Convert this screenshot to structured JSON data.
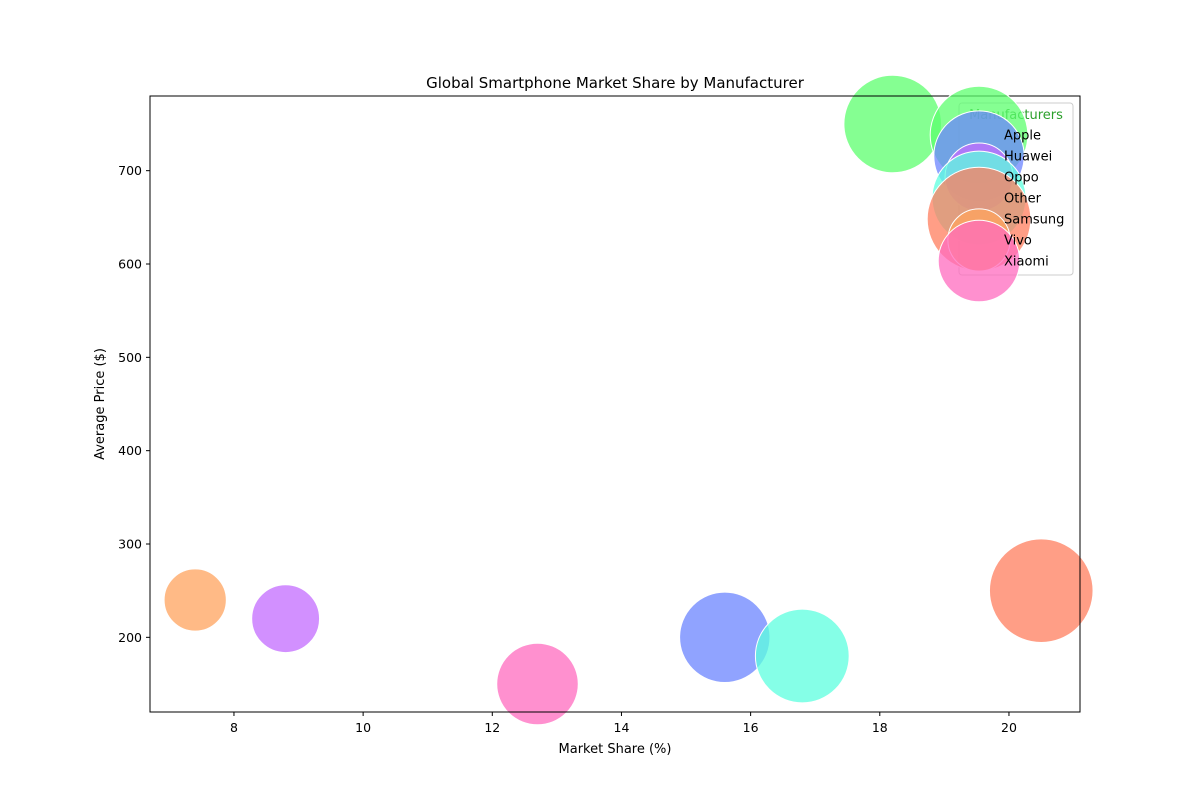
{
  "chart_data": {
    "type": "scatter",
    "title": "Global Smartphone Market Share by Manufacturer",
    "xlabel": "Market Share (%)",
    "ylabel": "Average Price ($)",
    "xlim": [
      6.7,
      21.1
    ],
    "ylim": [
      120,
      780
    ],
    "xticks": [
      8,
      10,
      12,
      14,
      16,
      18,
      20
    ],
    "yticks": [
      200,
      300,
      400,
      500,
      600,
      700
    ],
    "grid": false,
    "legend": {
      "title": "Manufacturers",
      "title_color": "#2ca02c",
      "placement": "top-right"
    },
    "series": [
      {
        "name": "Apple",
        "x": 18.2,
        "y": 750,
        "size": 18.2,
        "color": "#5cff6e"
      },
      {
        "name": "Huawei",
        "x": 15.6,
        "y": 200,
        "size": 15.6,
        "color": "#6b84ff"
      },
      {
        "name": "Oppo",
        "x": 8.8,
        "y": 220,
        "size": 8.8,
        "color": "#c36bff"
      },
      {
        "name": "Other",
        "x": 16.8,
        "y": 180,
        "size": 16.8,
        "color": "#5cffdf"
      },
      {
        "name": "Samsung",
        "x": 20.5,
        "y": 250,
        "size": 20.5,
        "color": "#ff7d5e"
      },
      {
        "name": "Vivo",
        "x": 7.4,
        "y": 240,
        "size": 7.4,
        "color": "#ffa35e"
      },
      {
        "name": "Xiaomi",
        "x": 12.7,
        "y": 150,
        "size": 12.7,
        "color": "#ff6bbf"
      }
    ]
  }
}
